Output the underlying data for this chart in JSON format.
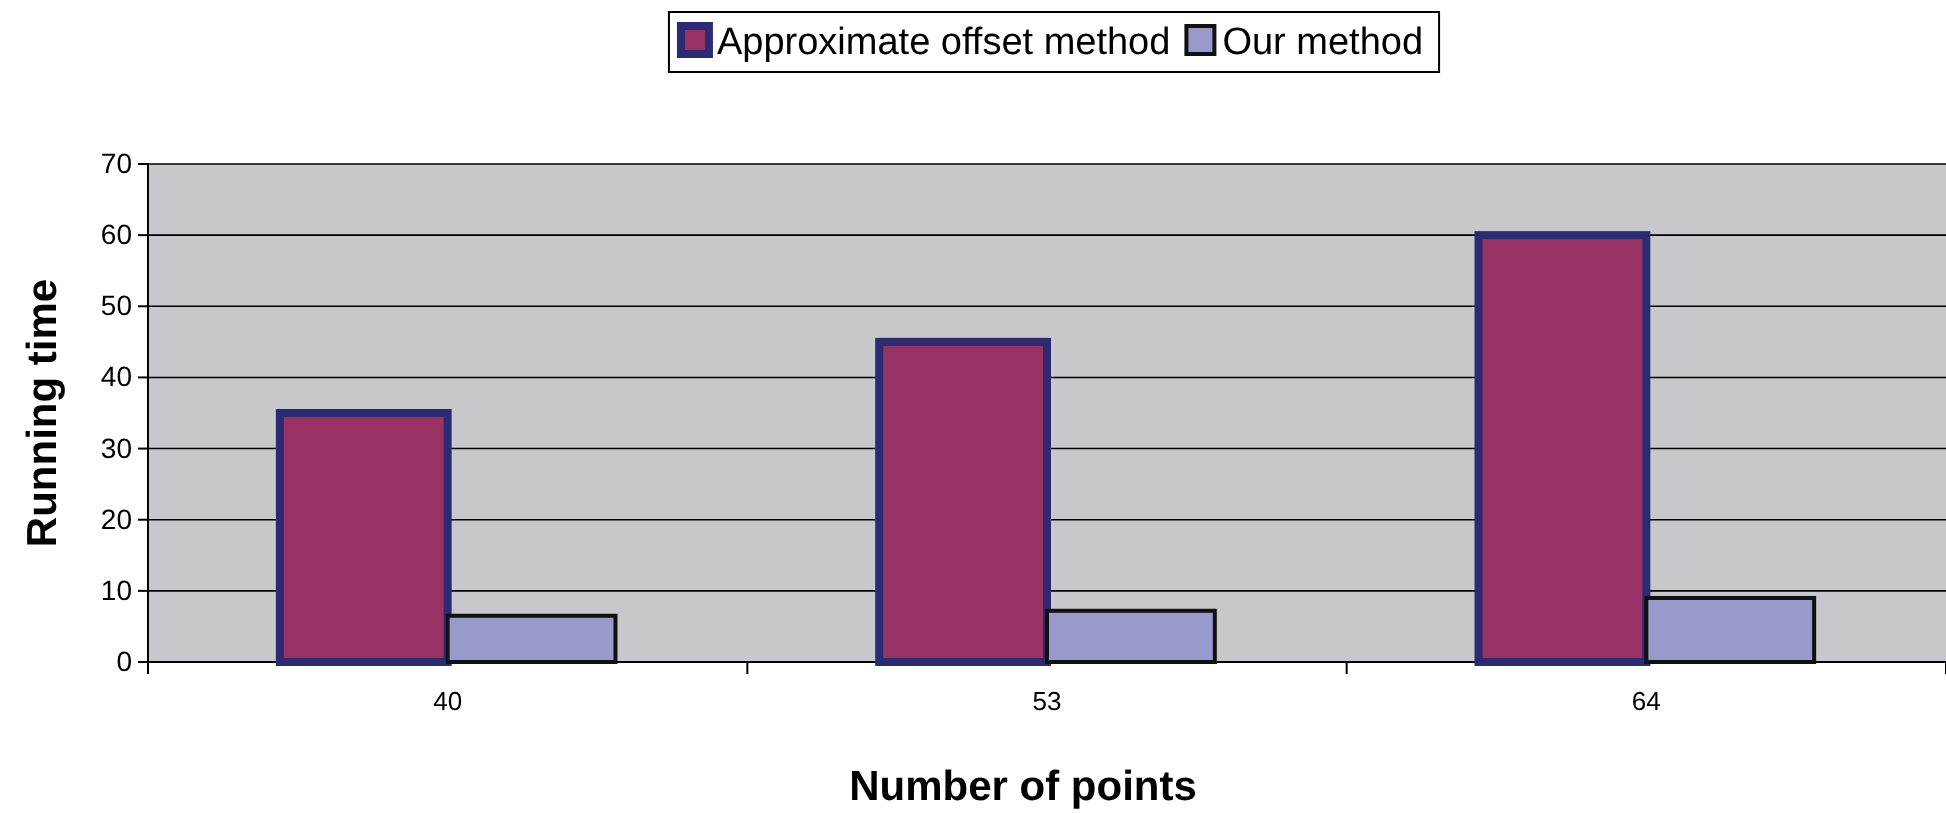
{
  "chart_data": {
    "type": "bar",
    "xlabel": "Number of points",
    "ylabel": "Running time",
    "categories": [
      "40",
      "53",
      "64"
    ],
    "series": [
      {
        "name": "Approximate offset method",
        "color": "#993366",
        "values": [
          35,
          45,
          60
        ]
      },
      {
        "name": "Our method",
        "color": "#9999cc",
        "values": [
          6.5,
          7.2,
          9
        ]
      }
    ],
    "ylim": [
      0,
      70
    ],
    "yticks": [
      0,
      10,
      20,
      30,
      40,
      50,
      60,
      70
    ],
    "grid": "y",
    "legend": "top"
  }
}
